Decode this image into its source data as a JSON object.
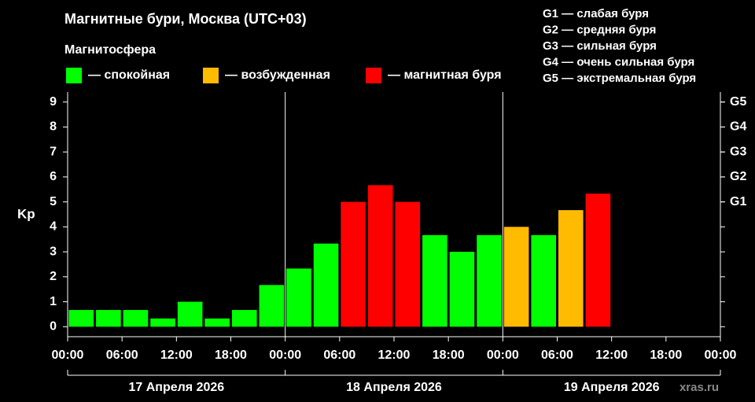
{
  "chart_data": {
    "type": "bar",
    "title": "Магнитные бури, Москва (UTC+03)",
    "legend_title": "Магнитосфера",
    "legend": [
      {
        "name": "— спокойная",
        "color": "#00ff00"
      },
      {
        "name": "— возбужденная",
        "color": "#ffbb00"
      },
      {
        "name": "— магнитная буря",
        "color": "#ff0000"
      }
    ],
    "notes": [
      "G1 — слабая буря",
      "G2 — средняя буря",
      "G3 — сильная буря",
      "G4 — очень сильная буря",
      "G5 — экстремальная буря"
    ],
    "ylabel": "Kp",
    "x": [
      0,
      3,
      6,
      9,
      12,
      15,
      18,
      21,
      24,
      27,
      30,
      33,
      36,
      39,
      42,
      45,
      48,
      51,
      54,
      57,
      60,
      63,
      66,
      69
    ],
    "bar_width": 3,
    "values": [
      0.67,
      0.67,
      0.67,
      0.33,
      1,
      0.33,
      0.67,
      1.67,
      2.33,
      3.33,
      5,
      5.67,
      5,
      3.67,
      3,
      3.67,
      4,
      3.67,
      4.67,
      5.33,
      null,
      null,
      null,
      null
    ],
    "colors": [
      "#00ff00",
      "#00ff00",
      "#00ff00",
      "#00ff00",
      "#00ff00",
      "#00ff00",
      "#00ff00",
      "#00ff00",
      "#00ff00",
      "#00ff00",
      "#ff0000",
      "#ff0000",
      "#ff0000",
      "#00ff00",
      "#00ff00",
      "#00ff00",
      "#ffbb00",
      "#00ff00",
      "#ffbb00",
      "#ff0000",
      null,
      null,
      null,
      null
    ],
    "xlim": [
      0,
      72
    ],
    "xticks": [
      {
        "value": 0,
        "label": "00:00"
      },
      {
        "value": 6,
        "label": "06:00"
      },
      {
        "value": 12,
        "label": "12:00"
      },
      {
        "value": 18,
        "label": "18:00"
      },
      {
        "value": 24,
        "label": "00:00"
      },
      {
        "value": 30,
        "label": "06:00"
      },
      {
        "value": 36,
        "label": "12:00"
      },
      {
        "value": 42,
        "label": "18:00"
      },
      {
        "value": 48,
        "label": "00:00"
      },
      {
        "value": 54,
        "label": "06:00"
      },
      {
        "value": 60,
        "label": "12:00"
      },
      {
        "value": 66,
        "label": "18:00"
      },
      {
        "value": 72,
        "label": "00:00"
      }
    ],
    "date_labels": [
      "17 Апреля 2026",
      "18 Апреля 2026",
      "19 Апреля 2026"
    ],
    "ylim": [
      -0.4,
      9.4
    ],
    "yticks": [
      0,
      1,
      2,
      3,
      4,
      5,
      6,
      7,
      8,
      9
    ],
    "y2lim": [
      -0.4,
      9.4
    ],
    "y2ticks": [
      {
        "value": 5,
        "label": "G1"
      },
      {
        "value": 6,
        "label": "G2"
      },
      {
        "value": 7,
        "label": "G3"
      },
      {
        "value": 8,
        "label": "G4"
      },
      {
        "value": 9,
        "label": "G5"
      }
    ],
    "watermark": "xras.ru"
  }
}
